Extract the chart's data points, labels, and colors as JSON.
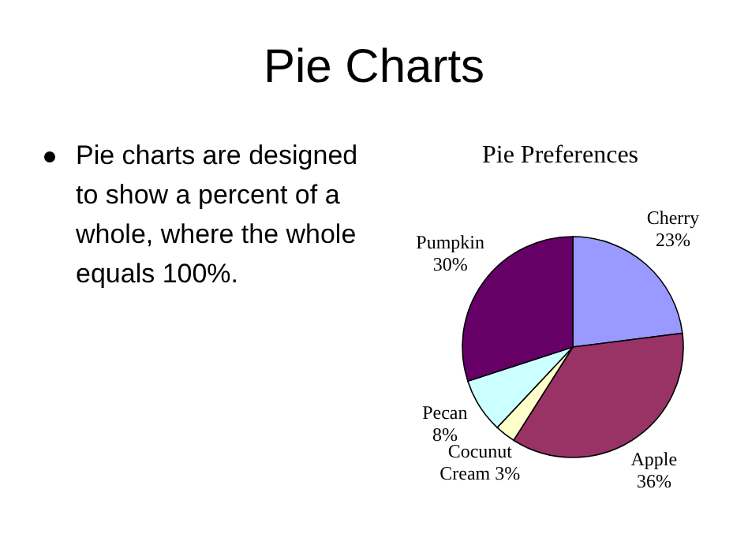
{
  "chart_data": {
    "type": "pie",
    "title": "Pie Preferences",
    "annotations": [
      "Pie Charts",
      "Pie charts are designed to show a percent of a whole, where the whole equals 100%."
    ],
    "categories": [
      "Cherry",
      "Apple",
      "Cocunut Cream",
      "Pecan",
      "Pumpkin"
    ],
    "values": [
      23,
      36,
      3,
      8,
      30
    ],
    "colors": [
      "#9999ff",
      "#993366",
      "#ffffcc",
      "#ccffff",
      "#660066"
    ],
    "value_labels": [
      "23%",
      "36%",
      "3%",
      "8%",
      "30%"
    ],
    "legend": false
  }
}
